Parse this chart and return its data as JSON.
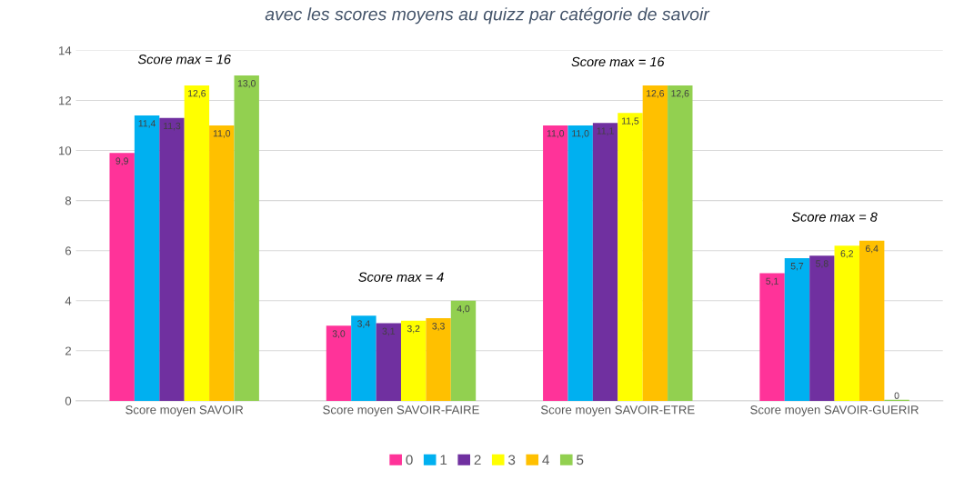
{
  "chart_data": {
    "type": "bar",
    "title": "avec les scores moyens au quizz par catégorie de savoir",
    "categories": [
      "Score moyen SAVOIR",
      "Score moyen SAVOIR-FAIRE",
      "Score moyen SAVOIR-ETRE",
      "Score moyen SAVOIR-GUERIR"
    ],
    "series": [
      {
        "name": "0",
        "color": "#ff3399",
        "values": [
          9.9,
          3.0,
          11.0,
          5.1
        ],
        "value_labels": [
          "9,9",
          "3,0",
          "11,0",
          "5,1"
        ]
      },
      {
        "name": "1",
        "color": "#00b0f0",
        "values": [
          11.4,
          3.4,
          11.0,
          5.7
        ],
        "value_labels": [
          "11,4",
          "3,4",
          "11,0",
          "5,7"
        ]
      },
      {
        "name": "2",
        "color": "#7030a0",
        "values": [
          11.3,
          3.1,
          11.1,
          5.8
        ],
        "value_labels": [
          "11,3",
          "3,1",
          "11,1",
          "5,8"
        ]
      },
      {
        "name": "3",
        "color": "#ffff00",
        "values": [
          12.6,
          3.2,
          11.5,
          6.2
        ],
        "value_labels": [
          "12,6",
          "3,2",
          "11,5",
          "6,2"
        ]
      },
      {
        "name": "4",
        "color": "#ffc000",
        "values": [
          11.0,
          3.3,
          12.6,
          6.4
        ],
        "value_labels": [
          "11,0",
          "3,3",
          "12,6",
          "6,4"
        ]
      },
      {
        "name": "5",
        "color": "#92d050",
        "values": [
          13.0,
          4.0,
          12.6,
          0
        ],
        "value_labels": [
          "13,0",
          "4,0",
          "12,6",
          "0"
        ]
      }
    ],
    "ylim": [
      0,
      14
    ],
    "yticks": [
      0,
      2,
      4,
      6,
      8,
      10,
      12,
      14
    ],
    "grid": "y",
    "legend": "bottom",
    "annotations": [
      "Score max = 16",
      "Score max = 4",
      "Score max = 16",
      "Score max = 8"
    ]
  }
}
